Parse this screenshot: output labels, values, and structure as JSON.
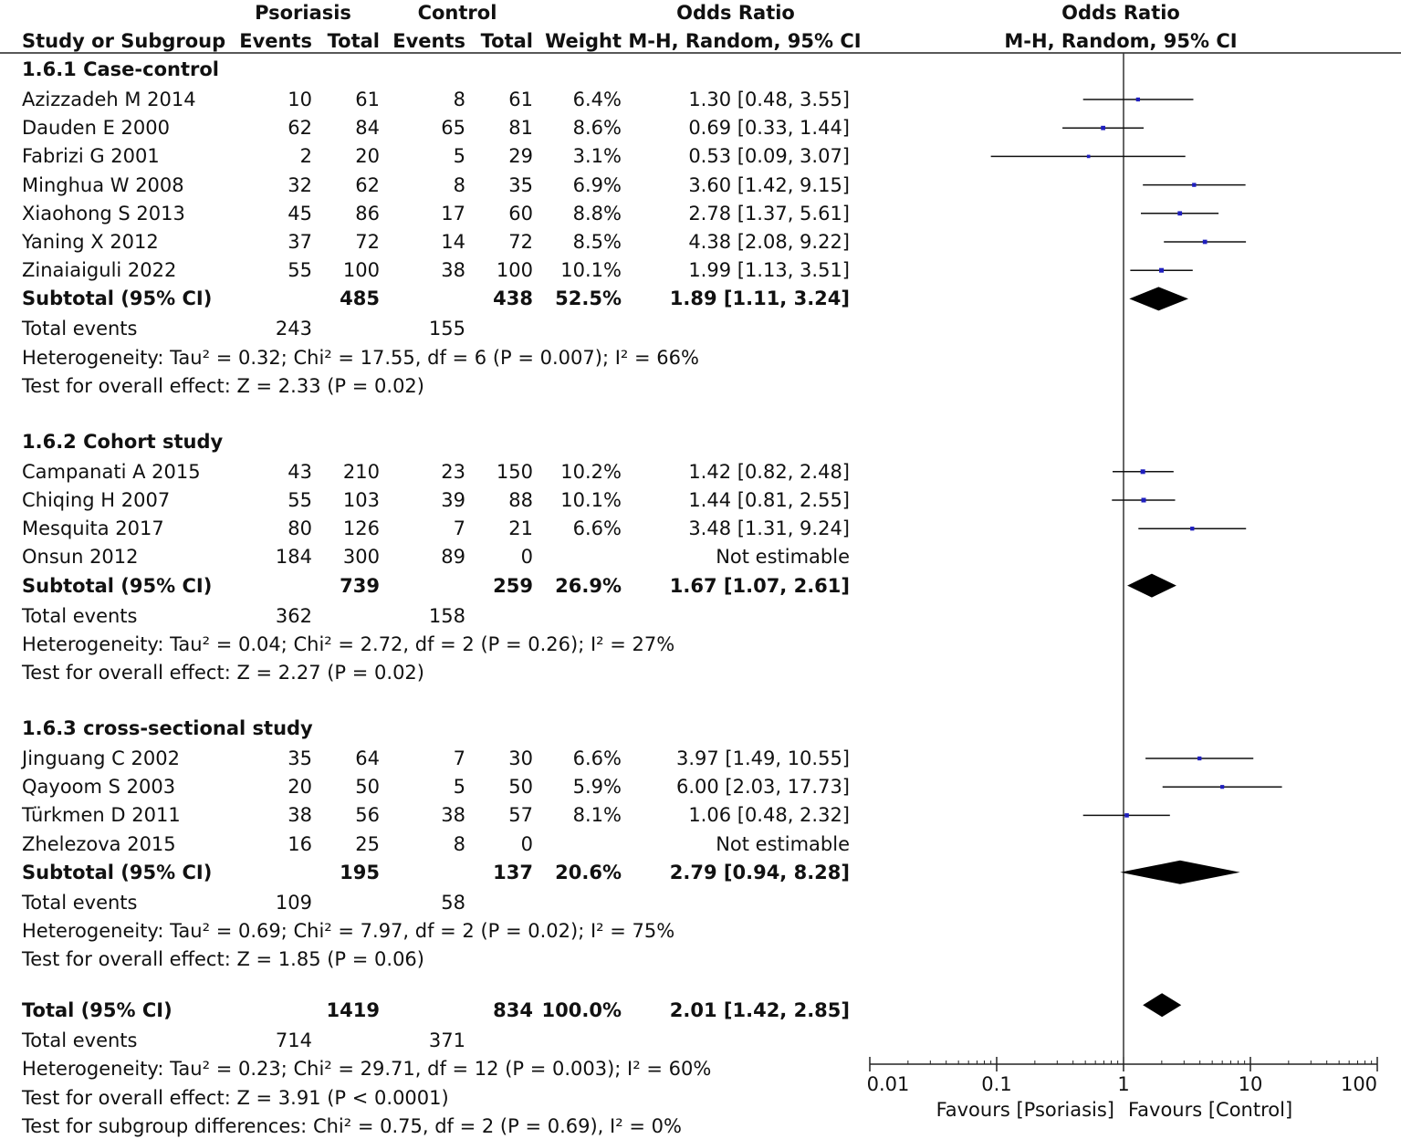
{
  "headers": {
    "group1": "Psoriasis",
    "group2": "Control",
    "or_left": "Odds Ratio",
    "or_right": "Odds Ratio",
    "col_study": "Study or Subgroup",
    "col_events1": "Events",
    "col_total1": "Total",
    "col_events2": "Events",
    "col_total2": "Total",
    "col_weight": "Weight",
    "col_method_left": "M-H, Random, 95% CI",
    "col_method_right": "M-H, Random, 95% CI"
  },
  "subgroups": [
    {
      "title": "1.6.1 Case-control",
      "studies": [
        {
          "name": "Azizzadeh M 2014",
          "e1": "10",
          "t1": "61",
          "e2": "8",
          "t2": "61",
          "weight": "6.4%",
          "ci": "1.30 [0.48, 3.55]",
          "or": 1.3,
          "lo": 0.48,
          "hi": 3.55
        },
        {
          "name": "Dauden E 2000",
          "e1": "62",
          "t1": "84",
          "e2": "65",
          "t2": "81",
          "weight": "8.6%",
          "ci": "0.69 [0.33, 1.44]",
          "or": 0.69,
          "lo": 0.33,
          "hi": 1.44
        },
        {
          "name": "Fabrizi G 2001",
          "e1": "2",
          "t1": "20",
          "e2": "5",
          "t2": "29",
          "weight": "3.1%",
          "ci": "0.53 [0.09, 3.07]",
          "or": 0.53,
          "lo": 0.09,
          "hi": 3.07
        },
        {
          "name": "Minghua W 2008",
          "e1": "32",
          "t1": "62",
          "e2": "8",
          "t2": "35",
          "weight": "6.9%",
          "ci": "3.60 [1.42, 9.15]",
          "or": 3.6,
          "lo": 1.42,
          "hi": 9.15
        },
        {
          "name": "Xiaohong S 2013",
          "e1": "45",
          "t1": "86",
          "e2": "17",
          "t2": "60",
          "weight": "8.8%",
          "ci": "2.78 [1.37, 5.61]",
          "or": 2.78,
          "lo": 1.37,
          "hi": 5.61
        },
        {
          "name": "Yaning X 2012",
          "e1": "37",
          "t1": "72",
          "e2": "14",
          "t2": "72",
          "weight": "8.5%",
          "ci": "4.38 [2.08, 9.22]",
          "or": 4.38,
          "lo": 2.08,
          "hi": 9.22
        },
        {
          "name": "Zinaiaiguli 2022",
          "e1": "55",
          "t1": "100",
          "e2": "38",
          "t2": "100",
          "weight": "10.1%",
          "ci": "1.99 [1.13, 3.51]",
          "or": 1.99,
          "lo": 1.13,
          "hi": 3.51
        }
      ],
      "subtotal": {
        "label": "Subtotal (95% CI)",
        "t1": "485",
        "t2": "438",
        "weight": "52.5%",
        "ci": "1.89 [1.11, 3.24]",
        "or": 1.89,
        "lo": 1.11,
        "hi": 3.24
      },
      "total_events": {
        "label": "Total events",
        "e1": "243",
        "e2": "155"
      },
      "heterogeneity": "Heterogeneity: Tau² = 0.32; Chi² = 17.55, df = 6 (P = 0.007); I² = 66%",
      "overall": "Test for overall effect: Z = 2.33 (P = 0.02)"
    },
    {
      "title": "1.6.2 Cohort study",
      "studies": [
        {
          "name": "Campanati A 2015",
          "e1": "43",
          "t1": "210",
          "e2": "23",
          "t2": "150",
          "weight": "10.2%",
          "ci": "1.42 [0.82, 2.48]",
          "or": 1.42,
          "lo": 0.82,
          "hi": 2.48
        },
        {
          "name": "Chiqing H 2007",
          "e1": "55",
          "t1": "103",
          "e2": "39",
          "t2": "88",
          "weight": "10.1%",
          "ci": "1.44 [0.81, 2.55]",
          "or": 1.44,
          "lo": 0.81,
          "hi": 2.55
        },
        {
          "name": "Mesquita 2017",
          "e1": "80",
          "t1": "126",
          "e2": "7",
          "t2": "21",
          "weight": "6.6%",
          "ci": "3.48 [1.31, 9.24]",
          "or": 3.48,
          "lo": 1.31,
          "hi": 9.24
        },
        {
          "name": "Onsun 2012",
          "e1": "184",
          "t1": "300",
          "e2": "89",
          "t2": "0",
          "weight": "",
          "ci": "Not estimable",
          "or": null,
          "lo": null,
          "hi": null
        }
      ],
      "subtotal": {
        "label": "Subtotal (95% CI)",
        "t1": "739",
        "t2": "259",
        "weight": "26.9%",
        "ci": "1.67 [1.07, 2.61]",
        "or": 1.67,
        "lo": 1.07,
        "hi": 2.61
      },
      "total_events": {
        "label": "Total events",
        "e1": "362",
        "e2": "158"
      },
      "heterogeneity": "Heterogeneity: Tau² = 0.04; Chi² = 2.72, df = 2 (P = 0.26); I² = 27%",
      "overall": "Test for overall effect: Z = 2.27 (P = 0.02)"
    },
    {
      "title": "1.6.3 cross-sectional study",
      "studies": [
        {
          "name": "Jinguang C 2002",
          "e1": "35",
          "t1": "64",
          "e2": "7",
          "t2": "30",
          "weight": "6.6%",
          "ci": "3.97 [1.49, 10.55]",
          "or": 3.97,
          "lo": 1.49,
          "hi": 10.55
        },
        {
          "name": "Qayoom S 2003",
          "e1": "20",
          "t1": "50",
          "e2": "5",
          "t2": "50",
          "weight": "5.9%",
          "ci": "6.00 [2.03, 17.73]",
          "or": 6.0,
          "lo": 2.03,
          "hi": 17.73
        },
        {
          "name": "Türkmen D 2011",
          "e1": "38",
          "t1": "56",
          "e2": "38",
          "t2": "57",
          "weight": "8.1%",
          "ci": "1.06 [0.48, 2.32]",
          "or": 1.06,
          "lo": 0.48,
          "hi": 2.32
        },
        {
          "name": "Zhelezova 2015",
          "e1": "16",
          "t1": "25",
          "e2": "8",
          "t2": "0",
          "weight": "",
          "ci": "Not estimable",
          "or": null,
          "lo": null,
          "hi": null
        }
      ],
      "subtotal": {
        "label": "Subtotal (95% CI)",
        "t1": "195",
        "t2": "137",
        "weight": "20.6%",
        "ci": "2.79 [0.94, 8.28]",
        "or": 2.79,
        "lo": 0.94,
        "hi": 8.28
      },
      "total_events": {
        "label": "Total events",
        "e1": "109",
        "e2": "58"
      },
      "heterogeneity": "Heterogeneity: Tau² = 0.69; Chi² = 7.97, df = 2 (P = 0.02); I² = 75%",
      "overall": "Test for overall effect: Z = 1.85 (P = 0.06)"
    }
  ],
  "overall": {
    "label": "Total (95% CI)",
    "t1": "1419",
    "t2": "834",
    "weight": "100.0%",
    "ci": "2.01 [1.42, 2.85]",
    "or": 2.01,
    "lo": 1.42,
    "hi": 2.85,
    "total_events": {
      "label": "Total events",
      "e1": "714",
      "e2": "371"
    },
    "heterogeneity": "Heterogeneity: Tau² = 0.23; Chi² = 29.71, df = 12 (P = 0.003); I² = 60%",
    "overall_effect": "Test for overall effect: Z = 3.91 (P < 0.0001)",
    "subgroup_diff": "Test for subgroup differences: Chi² = 0.75, df = 2 (P = 0.69), I² = 0%"
  },
  "chart_data": {
    "type": "forest",
    "title": "Odds Ratio M-H, Random, 95% CI",
    "scale": "log",
    "xlim": [
      0.01,
      100
    ],
    "x_ticks": [
      0.01,
      0.1,
      1,
      10,
      100
    ],
    "x_tick_labels": [
      "0.01",
      "0.1",
      "1",
      "10",
      "100"
    ],
    "favours_left": "Favours [Psoriasis]",
    "favours_right": "Favours [Control]",
    "marker_color": "#1f1fbf"
  }
}
